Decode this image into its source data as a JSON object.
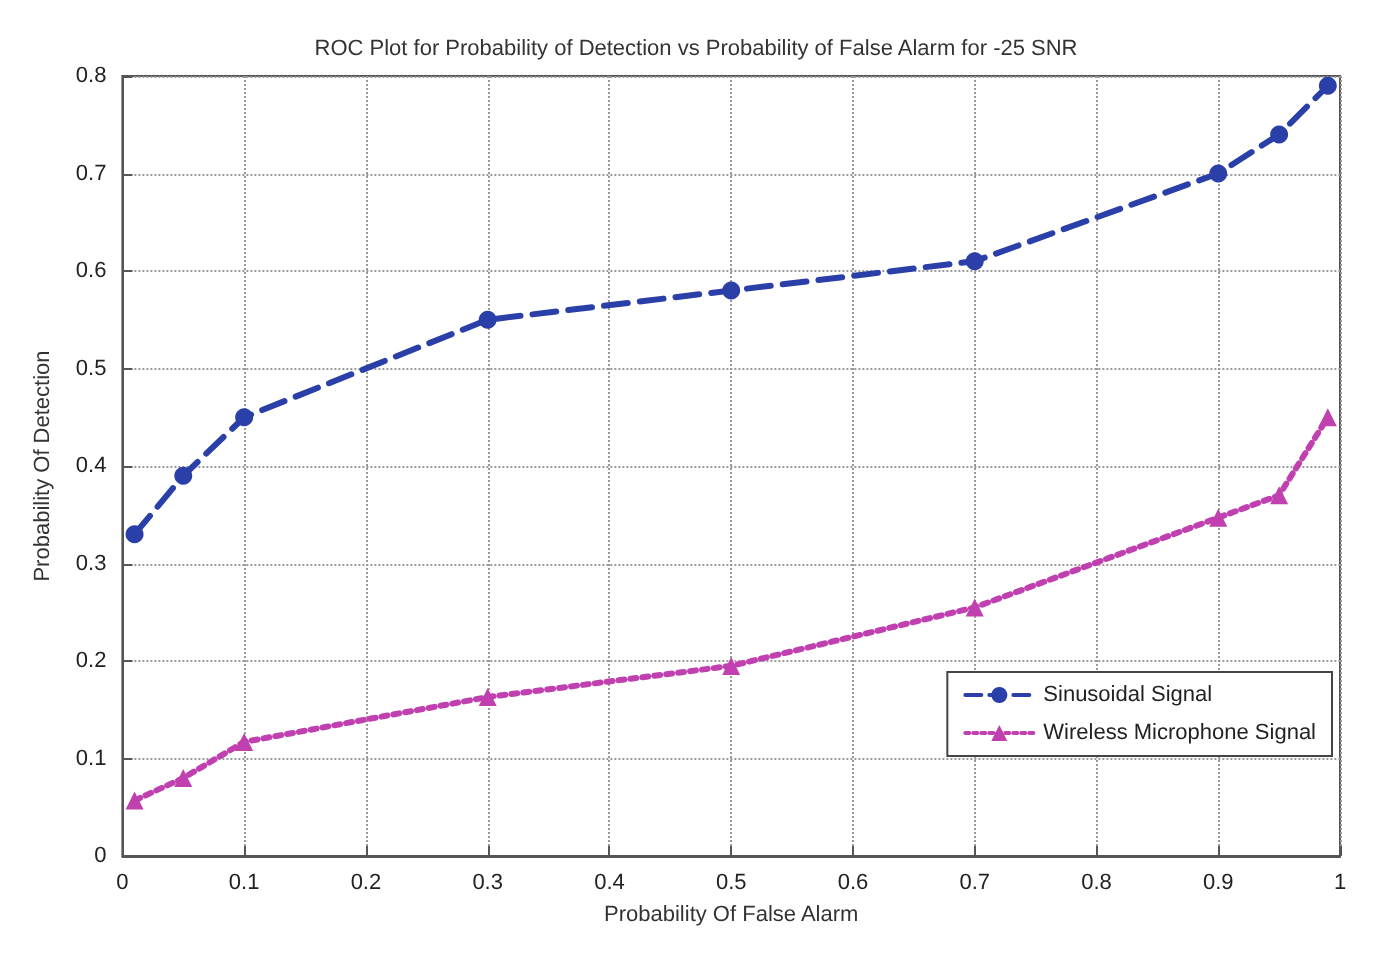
{
  "chart_data": {
    "type": "line",
    "title": "ROC Plot for Probability of Detection vs Probability of False Alarm for -25 SNR",
    "xlabel": "Probability Of False Alarm",
    "ylabel": "Probability Of Detection",
    "x": [
      0.01,
      0.05,
      0.1,
      0.3,
      0.5,
      0.7,
      0.9,
      0.95,
      0.99
    ],
    "series": [
      {
        "name": "Sinusoidal Signal",
        "color": "#2a3fa8",
        "marker": "circle",
        "line_style": "dashed",
        "values": [
          0.33,
          0.39,
          0.45,
          0.55,
          0.58,
          0.61,
          0.7,
          0.74,
          0.79
        ]
      },
      {
        "name": "Wireless Microphone Signal",
        "color": "#c040b0",
        "marker": "triangle",
        "line_style": "dotted",
        "values": [
          0.057,
          0.08,
          0.117,
          0.163,
          0.195,
          0.255,
          0.347,
          0.37,
          0.45
        ]
      }
    ],
    "xlim": [
      0,
      1
    ],
    "xticks": [
      0,
      0.1,
      0.2,
      0.3,
      0.4,
      0.5,
      0.6,
      0.7,
      0.8,
      0.9,
      1
    ],
    "ylim": [
      0,
      0.8
    ],
    "yticks": [
      0,
      0.1,
      0.2,
      0.3,
      0.4,
      0.5,
      0.6,
      0.7,
      0.8
    ],
    "grid": true,
    "legend": "bottom right"
  }
}
